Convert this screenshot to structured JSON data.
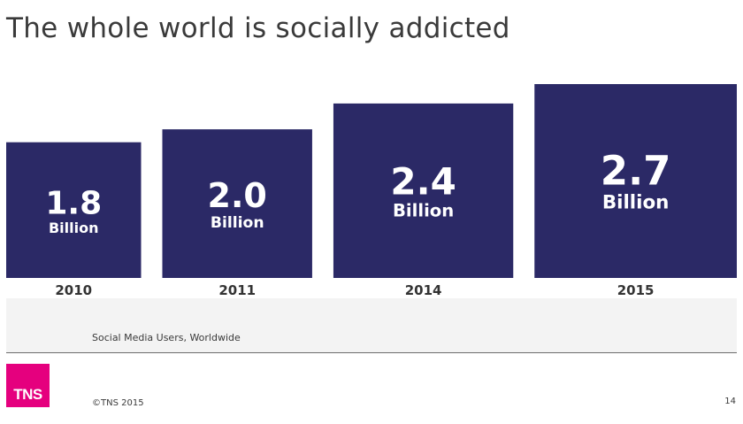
{
  "slide": {
    "title": "The whole world is socially addicted",
    "caption": "Social Media Users, Worldwide",
    "copyright": "©TNS 2015",
    "page_number": "14",
    "logo_text": "TNS"
  },
  "colors": {
    "bar": "#2b2966",
    "logo": "#e5007e",
    "band": "#f3f3f3"
  },
  "chart_data": {
    "type": "bar",
    "title": "",
    "categories": [
      "2010",
      "2011",
      "2014",
      "2015"
    ],
    "values": [
      1.8,
      2.0,
      2.4,
      2.7
    ],
    "value_labels": [
      "1.8",
      "2.0",
      "2.4",
      "2.7"
    ],
    "unit_label": "Billion",
    "xlabel": "",
    "ylabel": "",
    "grid": false,
    "legend": "none"
  }
}
